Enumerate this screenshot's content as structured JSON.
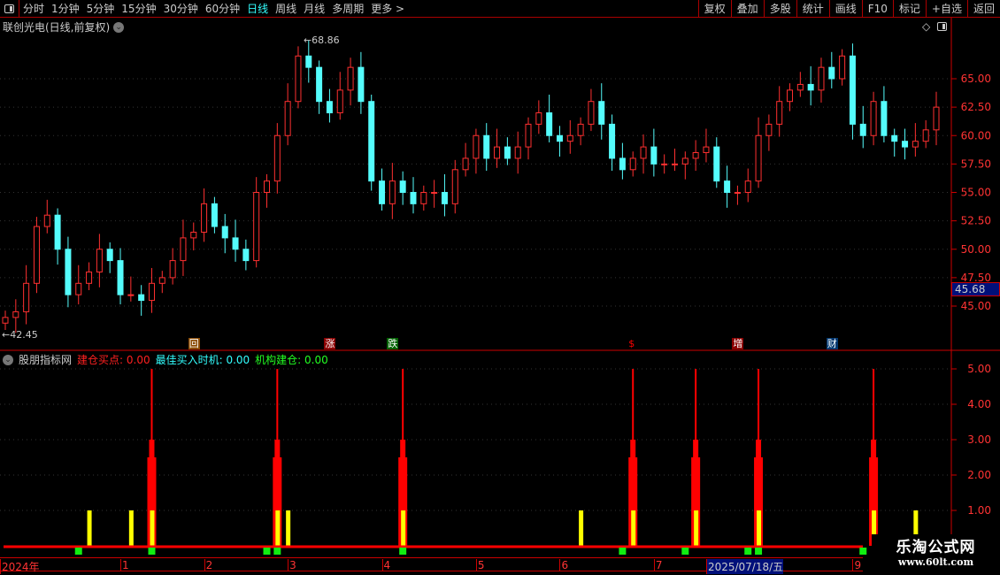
{
  "toolbar": {
    "periods": [
      "分时",
      "1分钟",
      "5分钟",
      "15分钟",
      "30分钟",
      "60分钟",
      "日线",
      "周线",
      "月线",
      "多周期",
      "更多 >"
    ],
    "active": "日线",
    "buttons": [
      "复权",
      "叠加",
      "多股",
      "统计",
      "画线",
      "F10",
      "标记",
      "+自选",
      "返回"
    ]
  },
  "title": "联创光电(日线,前复权)",
  "price_axis": {
    "ticks": [
      "65.00",
      "62.50",
      "60.00",
      "57.50",
      "55.00",
      "52.50",
      "50.00",
      "47.50",
      "45.00"
    ],
    "current": "45.68"
  },
  "high_label": "68.86",
  "low_label": "42.45",
  "events": [
    {
      "label": "回",
      "bar": 18,
      "bg": "#8a4a00",
      "fg": "#fff"
    },
    {
      "label": "涨",
      "bar": 31,
      "bg": "#8b0000",
      "fg": "#fff"
    },
    {
      "label": "跌",
      "bar": 37,
      "bg": "#006000",
      "fg": "#fff"
    },
    {
      "label": "$",
      "bar": 60,
      "bg": "transparent",
      "fg": "#f00"
    },
    {
      "label": "增",
      "bar": 70,
      "bg": "#8b0000",
      "fg": "#fff"
    },
    {
      "label": "财",
      "bar": 79,
      "bg": "#003870",
      "fg": "#fff"
    }
  ],
  "candles": {
    "up_color": "#ff3030",
    "down_color": "#54fcfc",
    "closes": [
      44,
      44.5,
      47,
      52,
      53,
      50,
      46,
      47,
      48,
      50,
      49,
      46,
      46,
      45.5,
      47,
      47.5,
      49,
      51,
      51.5,
      54,
      52,
      51,
      50,
      49,
      55,
      56,
      60,
      63,
      67,
      66,
      63,
      62,
      64,
      66,
      63,
      56,
      54,
      56,
      55,
      54,
      55,
      55,
      54,
      57,
      58,
      60,
      58,
      59,
      58,
      59,
      61,
      62,
      60,
      59.5,
      60,
      61,
      63,
      61,
      58,
      57,
      58,
      59,
      57.5,
      57.5,
      57.5,
      58,
      58.5,
      59,
      56,
      55,
      55,
      56,
      60,
      61,
      63,
      64,
      64.5,
      64,
      66,
      65,
      67,
      61,
      60,
      63,
      60,
      59.5,
      59,
      59.5,
      60.5,
      62.5
    ]
  },
  "indicator": {
    "name": "股朋指标网",
    "lines": [
      {
        "label": "建仓买点: 0.00",
        "color": "#ff2020"
      },
      {
        "label": "最佳买入时机: 0.00",
        "color": "#3ff"
      },
      {
        "label": "机构建仓: 0.00",
        "color": "#2f2"
      }
    ],
    "ticks": [
      "5.00",
      "4.00",
      "3.00",
      "2.00",
      "1.00"
    ],
    "red_spikes": [
      14,
      26,
      38,
      60,
      66,
      72,
      83
    ],
    "yellow_bars": [
      8,
      12,
      14,
      26,
      27,
      38,
      55,
      60,
      66,
      72,
      83,
      87
    ],
    "green_marks": [
      7,
      14,
      25,
      26,
      38,
      59,
      65,
      71,
      72,
      82
    ]
  },
  "date_axis": [
    {
      "label": "2024年",
      "bar": 0
    },
    {
      "label": "1",
      "bar": 11
    },
    {
      "label": "2",
      "bar": 19
    },
    {
      "label": "3",
      "bar": 27
    },
    {
      "label": "4",
      "bar": 36
    },
    {
      "label": "5",
      "bar": 45
    },
    {
      "label": "6",
      "bar": 53
    },
    {
      "label": "7",
      "bar": 62
    },
    {
      "label": "2025/07/18/五",
      "bar": 67,
      "selected": true
    },
    {
      "label": "9",
      "bar": 81
    }
  ],
  "watermark": {
    "name": "乐淘公式网",
    "url": "www.60lt.com"
  }
}
